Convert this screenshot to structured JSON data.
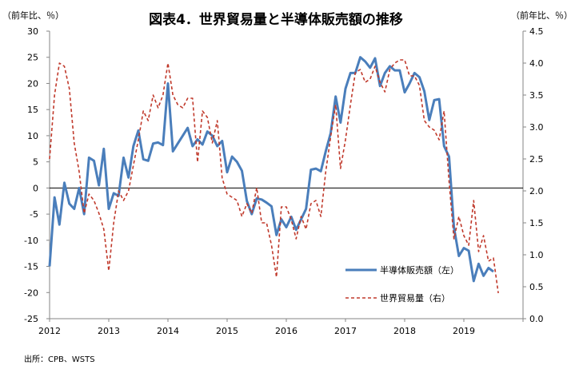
{
  "chart_data": {
    "type": "line",
    "title": "図表4．世界貿易量と半導体販売額の推移",
    "left_unit": "（前年比、％）",
    "right_unit": "（前年比、％）",
    "source": "出所：CPB、WSTS",
    "x_range": [
      2012,
      2020
    ],
    "x_ticks": [
      "2012",
      "2013",
      "2014",
      "2015",
      "2016",
      "2017",
      "2018",
      "2019"
    ],
    "y_left": {
      "min": -25,
      "max": 30,
      "step": 5,
      "ticks": [
        "-25",
        "-20",
        "-15",
        "-10",
        "-5",
        "0",
        "5",
        "10",
        "15",
        "20",
        "25",
        "30"
      ]
    },
    "y_right": {
      "min": 0.0,
      "max": 4.5,
      "step": 0.5,
      "ticks": [
        "0.0",
        "0.5",
        "1.0",
        "1.5",
        "2.0",
        "2.5",
        "3.0",
        "3.5",
        "4.0",
        "4.5"
      ]
    },
    "series": [
      {
        "name": "半導体販売額（左）",
        "axis": "left",
        "color": "#4a7ebb",
        "dash": "solid",
        "x_start": 2012.0,
        "x_step": 0.08333,
        "values": [
          -15,
          -1.8,
          -7,
          1,
          -3,
          -4,
          0,
          -5,
          5.8,
          5.2,
          0.5,
          7.5,
          -4,
          -1,
          -1.5,
          5.8,
          2,
          8,
          11,
          5.5,
          5.2,
          8.5,
          8.7,
          8.2,
          20,
          7,
          8.5,
          10,
          11.5,
          8,
          9.3,
          8.3,
          10.8,
          10,
          8,
          9,
          3,
          6,
          5,
          3.3,
          -2.5,
          -5,
          -2,
          -2.2,
          -2.8,
          -3.5,
          -9,
          -6,
          -7.5,
          -5.5,
          -8,
          -6,
          -4,
          3.5,
          3.7,
          3.2,
          7,
          10.5,
          17.5,
          12.5,
          19,
          22,
          22,
          25,
          24.2,
          23,
          24.8,
          19.5,
          22,
          23.3,
          22.5,
          22.5,
          18.3,
          20,
          22,
          21.2,
          18.5,
          13,
          16.8,
          17,
          8,
          6,
          -7.5,
          -13,
          -11.5,
          -12,
          -17.8,
          -14.5,
          -16.8,
          -15.3,
          -16
        ]
      },
      {
        "name": "世界貿易量（右）",
        "axis": "right",
        "color": "#c0392b",
        "dash": "dashed",
        "x_start": 2012.0,
        "x_step": 0.08333,
        "values": [
          2.5,
          3.5,
          4.0,
          3.95,
          3.6,
          2.75,
          2.3,
          1.65,
          1.95,
          1.85,
          1.65,
          1.4,
          0.75,
          1.5,
          2.0,
          1.85,
          2.0,
          2.4,
          2.8,
          3.25,
          3.1,
          3.5,
          3.3,
          3.5,
          4.0,
          3.5,
          3.35,
          3.3,
          3.45,
          3.45,
          2.45,
          3.25,
          3.15,
          2.75,
          3.1,
          2.2,
          1.95,
          1.9,
          1.85,
          1.6,
          1.8,
          1.65,
          2.05,
          1.5,
          1.5,
          1.15,
          0.65,
          1.75,
          1.75,
          1.55,
          1.25,
          1.6,
          1.4,
          1.8,
          1.85,
          1.6,
          2.3,
          2.85,
          3.35,
          2.35,
          2.8,
          3.35,
          3.85,
          3.9,
          3.7,
          3.75,
          3.95,
          3.7,
          3.55,
          3.9,
          4.0,
          4.05,
          4.05,
          3.8,
          3.8,
          3.65,
          3.1,
          3.0,
          2.95,
          2.8,
          3.25,
          2.15,
          1.25,
          1.6,
          1.3,
          1.15,
          1.85,
          1.05,
          1.3,
          0.9,
          0.95,
          0.4
        ]
      }
    ]
  }
}
